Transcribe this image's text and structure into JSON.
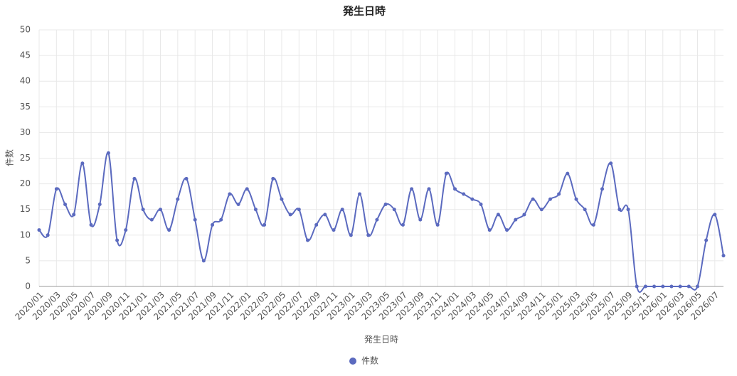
{
  "chart_data": {
    "type": "line",
    "title": "発生日時",
    "x_label": "発生日時",
    "y_label": "件数",
    "x": [
      "2020/01",
      null,
      "2020/03",
      null,
      "2020/05",
      null,
      "2020/07",
      null,
      "2020/09",
      null,
      "2020/11",
      null,
      "2021/01",
      null,
      "2021/03",
      null,
      "2021/05",
      null,
      "2021/07",
      null,
      "2021/09",
      null,
      "2021/11",
      null,
      "2022/01",
      null,
      "2022/03",
      null,
      "2022/05",
      null,
      "2022/07",
      null,
      "2022/09",
      null,
      "2022/11",
      null,
      "2023/01",
      null,
      "2023/03",
      null,
      "2023/05",
      null,
      "2023/07",
      null,
      "2023/09",
      null,
      "2023/11",
      null,
      "2024/01",
      null,
      "2024/03",
      null,
      "2024/05",
      null,
      "2024/07",
      null,
      "2024/09",
      null,
      "2024/11",
      null,
      "2025/01",
      null,
      "2025/03",
      null,
      "2025/05",
      null,
      "2025/07",
      null,
      "2025/09",
      null,
      "2025/11",
      null,
      "2026/01",
      null,
      "2026/03",
      null,
      "2026/05",
      null,
      "2026/07",
      null
    ],
    "series": [
      {
        "name": "件数",
        "color": "#5b6abf",
        "values": [
          11,
          10,
          19,
          16,
          14,
          24,
          12,
          16,
          26,
          9,
          11,
          21,
          15,
          13,
          15,
          11,
          17,
          21,
          13,
          5,
          12,
          13,
          18,
          16,
          19,
          15,
          12,
          21,
          17,
          14,
          15,
          9,
          12,
          14,
          11,
          15,
          10,
          18,
          10,
          13,
          16,
          15,
          12,
          19,
          13,
          19,
          12,
          22,
          19,
          18,
          17,
          16,
          11,
          14,
          11,
          13,
          14,
          17,
          15,
          17,
          18,
          22,
          17,
          15,
          12,
          19,
          24,
          15,
          15,
          0,
          0,
          0,
          0,
          0,
          0,
          0,
          0,
          9,
          14,
          6
        ]
      }
    ],
    "ylim": [
      0,
      50
    ],
    "yticks": [
      0,
      5,
      10,
      15,
      20,
      25,
      30,
      35,
      40,
      45,
      50
    ],
    "grid": true,
    "smooth": true,
    "legend": "bottom"
  }
}
